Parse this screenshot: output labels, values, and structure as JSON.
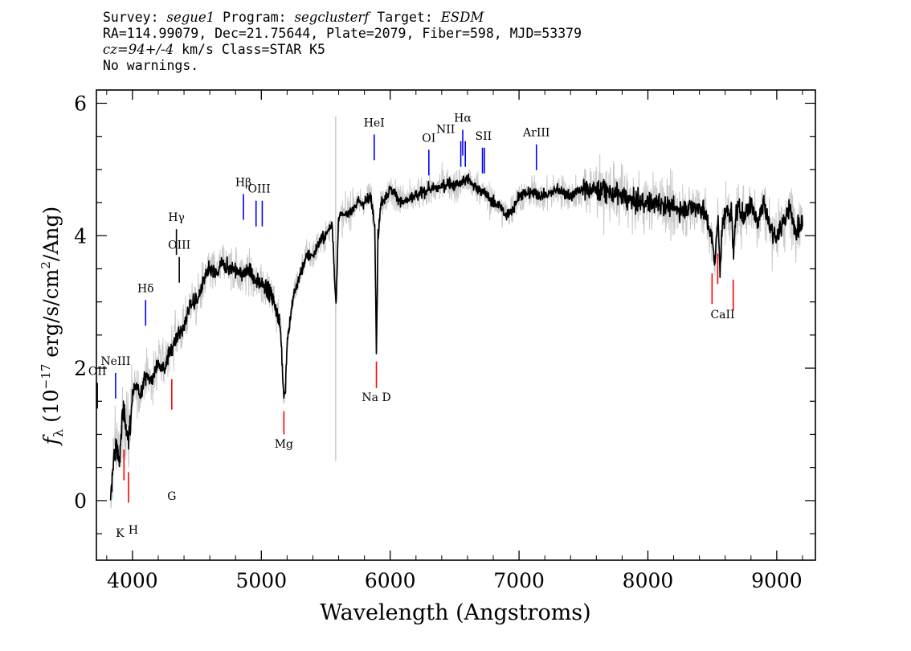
{
  "header": {
    "survey_label": "Survey:",
    "survey": "segue1",
    "program_label": "Program:",
    "program": "segclusterf",
    "target_label": "Target:",
    "target": "ESDM",
    "coords": "RA=114.99079, Dec=21.75644, Plate=2079, Fiber=598, MJD=53379",
    "cz": "cz=94+/-4",
    "cz_unit": "km/s",
    "class": "Class=STAR K5",
    "warnings": "No warnings."
  },
  "chart_data": {
    "type": "line",
    "xlabel": "Wavelength (Angstroms)",
    "ylabel": "f_λ (10^-17 erg/s/cm^2/Ang)",
    "xlim": [
      3720,
      9300
    ],
    "ylim": [
      -0.9,
      6.2
    ],
    "xticks": [
      4000,
      5000,
      6000,
      7000,
      8000,
      9000
    ],
    "yticks": [
      0,
      2,
      4,
      6
    ],
    "series": [
      {
        "role": "flux",
        "color": "#000000",
        "x": [
          3830,
          3850,
          3880,
          3900,
          3920,
          3950,
          3970,
          4000,
          4030,
          4060,
          4100,
          4150,
          4200,
          4250,
          4300,
          4350,
          4400,
          4450,
          4500,
          4550,
          4600,
          4650,
          4700,
          4750,
          4800,
          4850,
          4900,
          4950,
          5000,
          5050,
          5100,
          5150,
          5170,
          5185,
          5200,
          5250,
          5300,
          5350,
          5400,
          5450,
          5500,
          5550,
          5580,
          5600,
          5650,
          5700,
          5750,
          5800,
          5850,
          5880,
          5893,
          5905,
          5930,
          5970,
          6000,
          6050,
          6100,
          6150,
          6200,
          6250,
          6300,
          6350,
          6400,
          6450,
          6500,
          6550,
          6600,
          6650,
          6700,
          6750,
          6800,
          6850,
          6900,
          6950,
          7000,
          7100,
          7200,
          7300,
          7400,
          7500,
          7600,
          7700,
          7800,
          7900,
          8000,
          8100,
          8200,
          8300,
          8400,
          8450,
          8500,
          8520,
          8545,
          8560,
          8580,
          8620,
          8650,
          8665,
          8680,
          8700,
          8750,
          8800,
          8850,
          8900,
          8950,
          9000,
          9050,
          9100,
          9150,
          9200
        ],
        "y": [
          -0.1,
          0.6,
          0.9,
          0.5,
          1.3,
          1.2,
          0.9,
          1.6,
          1.7,
          1.6,
          1.9,
          1.8,
          2.1,
          2.0,
          2.3,
          2.5,
          2.6,
          3.0,
          3.0,
          3.3,
          3.5,
          3.4,
          3.6,
          3.5,
          3.5,
          3.4,
          3.5,
          3.3,
          3.3,
          3.2,
          3.0,
          2.6,
          1.7,
          1.6,
          2.4,
          3.1,
          3.4,
          3.7,
          3.7,
          3.9,
          4.0,
          4.2,
          2.9,
          4.3,
          4.3,
          4.4,
          4.5,
          4.5,
          4.6,
          4.2,
          2.2,
          4.0,
          4.5,
          4.6,
          4.7,
          4.6,
          4.5,
          4.55,
          4.6,
          4.65,
          4.7,
          4.7,
          4.75,
          4.8,
          4.75,
          4.8,
          4.85,
          4.75,
          4.7,
          4.6,
          4.5,
          4.45,
          4.3,
          4.4,
          4.6,
          4.65,
          4.6,
          4.7,
          4.6,
          4.7,
          4.7,
          4.65,
          4.6,
          4.5,
          4.5,
          4.5,
          4.4,
          4.4,
          4.45,
          4.3,
          3.9,
          3.6,
          4.3,
          3.5,
          4.2,
          4.4,
          4.3,
          3.7,
          4.3,
          4.4,
          4.3,
          4.5,
          4.2,
          4.5,
          4.1,
          4.0,
          4.2,
          4.4,
          4.1,
          4.2
        ]
      }
    ],
    "lines": [
      {
        "label": "OII",
        "x": 3727,
        "color": "#000000",
        "label_y": 1.9
      },
      {
        "label": "NeIII",
        "x": 3869,
        "color": "#0000ff",
        "label_y": 2.05
      },
      {
        "label": "K",
        "x": 3934,
        "color": "#ff0000",
        "label_y": -0.5
      },
      {
        "label": "H",
        "x": 3969,
        "color": "#ff0000",
        "label_y": -0.45
      },
      {
        "label": "Hδ",
        "x": 4102,
        "color": "#0000ff",
        "label_y": 3.15
      },
      {
        "label": "G",
        "x": 4305,
        "color": "#ff0000",
        "label_y": 0.06
      },
      {
        "label": "Hγ",
        "x": 4341,
        "color": "#000000",
        "label_y": 4.22
      },
      {
        "label": "OIII",
        "x": 4363,
        "color": "#000000",
        "label_y": 3.8
      },
      {
        "label": "Hβ",
        "x": 4861,
        "color": "#0000ff",
        "label_y": 4.75
      },
      {
        "label": "OIII",
        "x": 4959,
        "color": "#0000ff",
        "label_y": 4.65
      },
      {
        "label": "OIII",
        "x": 5007,
        "color": "#0000ff",
        "label_y": 4.65
      },
      {
        "label": "Mg",
        "x": 5175,
        "color": "#ff0000",
        "label_y": 0.85
      },
      {
        "label": "HeI",
        "x": 5876,
        "color": "#0000ff",
        "label_y": 5.65
      },
      {
        "label": "Na D",
        "x": 5893,
        "color": "#ff0000",
        "label_y": 1.55
      },
      {
        "label": "OI",
        "x": 6300,
        "color": "#0000ff",
        "label_y": 5.42
      },
      {
        "label": "NII",
        "x": 6548,
        "color": "#0000ff",
        "label_y": 5.55
      },
      {
        "label": "Hα",
        "x": 6563,
        "color": "#0000ff",
        "label_y": 5.72
      },
      {
        "label": "NII",
        "x": 6583,
        "color": "#0000ff",
        "label_y": 5.55
      },
      {
        "label": "SII",
        "x": 6716,
        "color": "#0000ff",
        "label_y": 5.45
      },
      {
        "label": "SII",
        "x": 6731,
        "color": "#0000ff",
        "label_y": 5.45
      },
      {
        "label": "ArIII",
        "x": 7135,
        "color": "#0000ff",
        "label_y": 5.5
      },
      {
        "label": "CaII",
        "x": 8498,
        "color": "#ff0000",
        "label_y": 2.8
      },
      {
        "label": "CaII",
        "x": 8542,
        "color": "#ff0000",
        "label_y": 2.8
      },
      {
        "label": "CaII",
        "x": 8662,
        "color": "#ff0000",
        "label_y": 2.8
      }
    ],
    "colors": {
      "flux": "#000000",
      "error": "#c8c8c8",
      "emission": "#0000ff",
      "absorption": "#ff0000"
    }
  }
}
